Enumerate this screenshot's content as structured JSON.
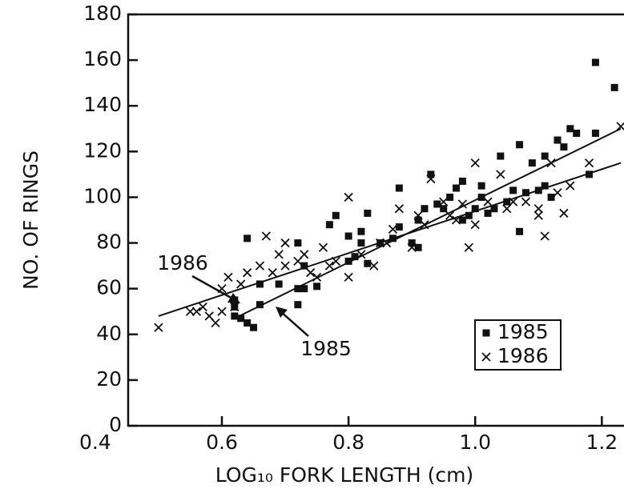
{
  "chart_data": {
    "type": "scatter",
    "xlabel": "LOG₁₀ FORK LENGTH (cm)",
    "ylabel": "NO. OF RINGS",
    "xlim": [
      0.452,
      1.235
    ],
    "ylim": [
      0,
      180
    ],
    "xticks": [
      {
        "value": 0.4,
        "label": "0.4"
      },
      {
        "value": 0.6,
        "label": "0.6"
      },
      {
        "value": 0.8,
        "label": "0.8"
      },
      {
        "value": 1.0,
        "label": "1.0"
      },
      {
        "value": 1.2,
        "label": "1.2"
      }
    ],
    "yticks": [
      0,
      20,
      40,
      60,
      80,
      100,
      120,
      140,
      160,
      180
    ],
    "legend": "lower right",
    "series": [
      {
        "name": "1985",
        "marker": "square",
        "color": "#111111",
        "x": [
          0.62,
          0.62,
          0.62,
          0.63,
          0.64,
          0.65,
          0.64,
          0.66,
          0.66,
          0.69,
          0.72,
          0.72,
          0.73,
          0.72,
          0.73,
          0.75,
          0.77,
          0.78,
          0.8,
          0.8,
          0.81,
          0.82,
          0.82,
          0.83,
          0.83,
          0.85,
          0.87,
          0.88,
          0.88,
          0.9,
          0.91,
          0.91,
          0.92,
          0.93,
          0.94,
          0.95,
          0.96,
          0.97,
          0.98,
          0.98,
          0.99,
          1.0,
          1.01,
          1.01,
          1.02,
          1.03,
          1.04,
          1.05,
          1.06,
          1.07,
          1.07,
          1.08,
          1.09,
          1.1,
          1.11,
          1.11,
          1.12,
          1.13,
          1.14,
          1.15,
          1.16,
          1.18,
          1.19,
          1.19,
          1.22
        ],
        "values": [
          48,
          52,
          55,
          47,
          45,
          43,
          82,
          53,
          62,
          62,
          53,
          60,
          60,
          80,
          70,
          61,
          88,
          92,
          72,
          83,
          74,
          85,
          80,
          93,
          71,
          80,
          82,
          87,
          104,
          80,
          78,
          90,
          95,
          110,
          97,
          95,
          100,
          104,
          107,
          90,
          92,
          95,
          100,
          105,
          93,
          95,
          118,
          98,
          103,
          85,
          123,
          102,
          115,
          103,
          105,
          118,
          100,
          125,
          122,
          130,
          128,
          110,
          128,
          159,
          148
        ]
      },
      {
        "name": "1986",
        "marker": "x",
        "color": "#111111",
        "x": [
          0.5,
          0.55,
          0.56,
          0.57,
          0.58,
          0.59,
          0.6,
          0.6,
          0.61,
          0.62,
          0.63,
          0.64,
          0.66,
          0.67,
          0.68,
          0.69,
          0.7,
          0.7,
          0.72,
          0.73,
          0.74,
          0.75,
          0.76,
          0.77,
          0.78,
          0.8,
          0.8,
          0.82,
          0.84,
          0.85,
          0.86,
          0.87,
          0.88,
          0.9,
          0.91,
          0.92,
          0.93,
          0.95,
          0.96,
          0.97,
          0.98,
          0.99,
          1.0,
          1.0,
          1.02,
          1.04,
          1.05,
          1.06,
          1.08,
          1.1,
          1.1,
          1.11,
          1.12,
          1.13,
          1.14,
          1.15,
          1.18,
          1.23
        ],
        "values": [
          43,
          50,
          50,
          52,
          48,
          45,
          50,
          60,
          65,
          52,
          62,
          67,
          70,
          83,
          67,
          75,
          80,
          70,
          72,
          75,
          67,
          65,
          78,
          70,
          72,
          65,
          100,
          75,
          70,
          80,
          80,
          86,
          95,
          78,
          92,
          88,
          108,
          98,
          92,
          90,
          97,
          78,
          115,
          88,
          98,
          110,
          95,
          98,
          98,
          95,
          92,
          83,
          115,
          102,
          93,
          105,
          115,
          131
        ]
      }
    ],
    "lines": [
      {
        "name": "1985",
        "x": [
          0.62,
          1.23
        ],
        "values": [
          47,
          130
        ]
      },
      {
        "name": "1986",
        "x": [
          0.5,
          1.23
        ],
        "values": [
          48,
          115
        ]
      }
    ]
  }
}
